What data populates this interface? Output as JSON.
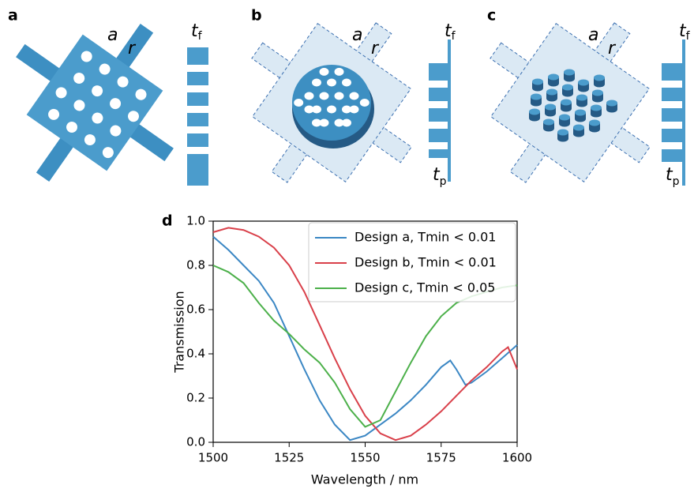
{
  "panels": [
    {
      "label": "a",
      "lattice": "a",
      "radius": "r",
      "thickness": [
        {
          "symbol": "t",
          "sub": "f"
        }
      ]
    },
    {
      "label": "b",
      "lattice": "a",
      "radius": "r",
      "thickness": [
        {
          "symbol": "t",
          "sub": "f"
        },
        {
          "symbol": "t",
          "sub": "p"
        }
      ]
    },
    {
      "label": "c",
      "lattice": "a",
      "radius": "r",
      "thickness": [
        {
          "symbol": "t",
          "sub": "f"
        },
        {
          "symbol": "t",
          "sub": "p"
        }
      ]
    }
  ],
  "chart_data": {
    "type": "line",
    "panel_label": "d",
    "x_label": "Wavelength / nm",
    "y_label": "Transmission",
    "xlim": [
      1500,
      1600
    ],
    "xticks": [
      1500,
      1525,
      1550,
      1575,
      1600
    ],
    "ylim": [
      0,
      1
    ],
    "yticks": [
      {
        "value": 0,
        "label": "0.0"
      },
      {
        "value": 0.2,
        "label": "0.2"
      },
      {
        "value": 0.4,
        "label": "0.4"
      },
      {
        "value": 0.6,
        "label": "0.6"
      },
      {
        "value": 0.8,
        "label": "0.8"
      },
      {
        "value": 1,
        "label": "1.0"
      }
    ],
    "legend": "upper right",
    "series": [
      {
        "name": "Design a, Tmin < 0.01",
        "color": "#3b87c4",
        "x": [
          1500,
          1505,
          1510,
          1515,
          1520,
          1525,
          1530,
          1535,
          1540,
          1545,
          1550,
          1555,
          1560,
          1565,
          1570,
          1575,
          1578,
          1580,
          1583,
          1585,
          1590,
          1595,
          1600
        ],
        "values": [
          0.93,
          0.87,
          0.8,
          0.73,
          0.63,
          0.48,
          0.33,
          0.19,
          0.08,
          0.01,
          0.03,
          0.08,
          0.13,
          0.19,
          0.26,
          0.34,
          0.37,
          0.33,
          0.26,
          0.27,
          0.32,
          0.38,
          0.44
        ]
      },
      {
        "name": "Design b, Tmin < 0.01",
        "color": "#d9404a",
        "x": [
          1500,
          1505,
          1510,
          1515,
          1520,
          1525,
          1530,
          1535,
          1540,
          1545,
          1550,
          1555,
          1560,
          1565,
          1570,
          1575,
          1580,
          1585,
          1590,
          1595,
          1597,
          1600
        ],
        "values": [
          0.95,
          0.97,
          0.96,
          0.93,
          0.88,
          0.8,
          0.68,
          0.53,
          0.38,
          0.24,
          0.12,
          0.04,
          0.01,
          0.03,
          0.08,
          0.14,
          0.21,
          0.28,
          0.34,
          0.41,
          0.43,
          0.33
        ]
      },
      {
        "name": "Design c, Tmin < 0.05",
        "color": "#4cb04a",
        "x": [
          1500,
          1505,
          1510,
          1515,
          1520,
          1525,
          1530,
          1535,
          1540,
          1545,
          1550,
          1555,
          1560,
          1565,
          1570,
          1575,
          1580,
          1585,
          1590,
          1595,
          1600
        ],
        "values": [
          0.8,
          0.77,
          0.72,
          0.63,
          0.55,
          0.49,
          0.42,
          0.36,
          0.27,
          0.15,
          0.07,
          0.1,
          0.23,
          0.36,
          0.48,
          0.57,
          0.63,
          0.66,
          0.68,
          0.7,
          0.71
        ]
      }
    ]
  }
}
